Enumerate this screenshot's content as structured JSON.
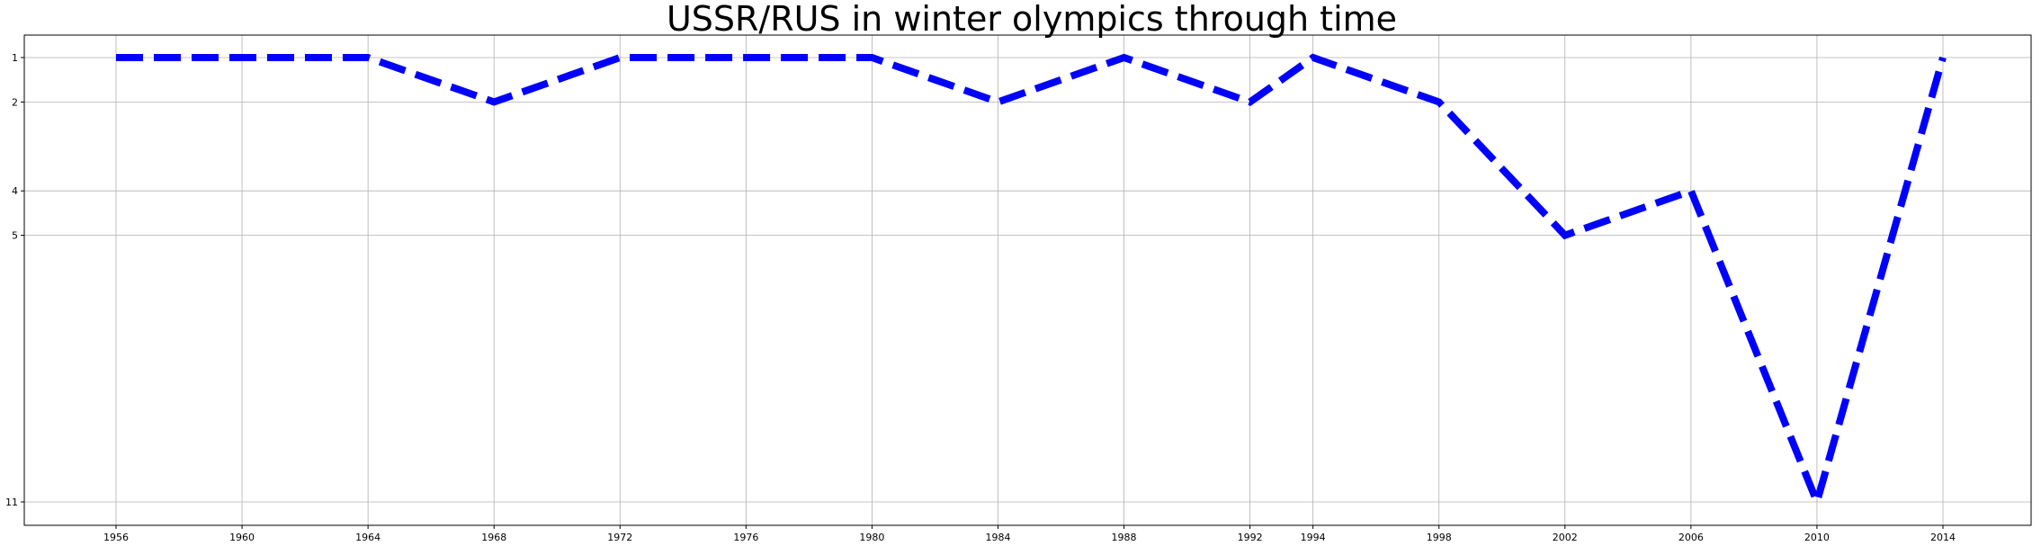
{
  "chart_data": {
    "type": "line",
    "title": "USSR/RUS in winter olympics through time",
    "xlabel": "",
    "ylabel": "",
    "x": [
      1956,
      1960,
      1964,
      1968,
      1972,
      1976,
      1980,
      1984,
      1988,
      1992,
      1994,
      1998,
      2002,
      2006,
      2010,
      2014
    ],
    "y": [
      1,
      1,
      1,
      2,
      1,
      1,
      1,
      2,
      1,
      2,
      1,
      2,
      5,
      4,
      11,
      1
    ],
    "xticks": [
      1956,
      1960,
      1964,
      1968,
      1972,
      1976,
      1980,
      1984,
      1988,
      1992,
      1994,
      1998,
      2002,
      2006,
      2010,
      2014
    ],
    "yticks": [
      1,
      2,
      4,
      5,
      11
    ],
    "y_inverted": true,
    "grid": true,
    "line_color": "#0000ff",
    "line_style": "dashed"
  }
}
